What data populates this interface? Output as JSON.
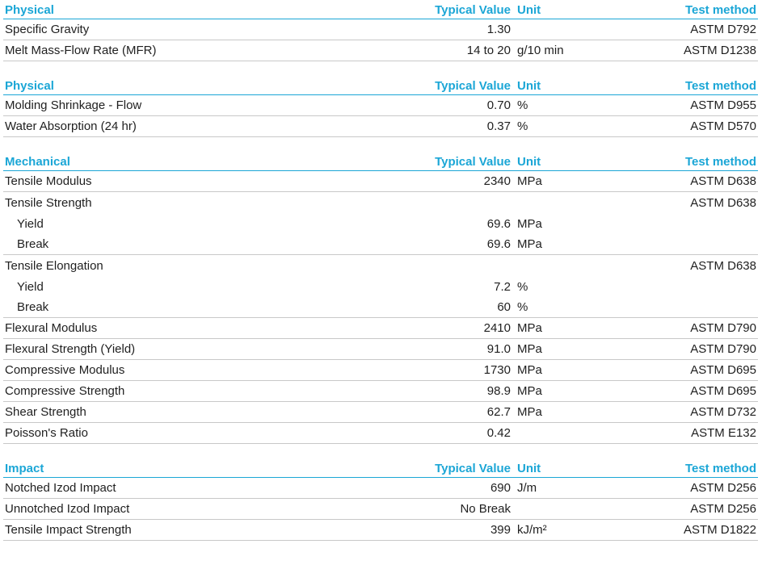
{
  "columns": {
    "typical_value": "Typical Value",
    "unit": "Unit",
    "test_method": "Test method"
  },
  "sections": [
    {
      "title": "Physical",
      "rows": [
        {
          "property": "Specific Gravity",
          "value": "1.30",
          "unit": "",
          "test": "ASTM D792"
        },
        {
          "property": "Melt Mass-Flow Rate (MFR)",
          "value": "14 to 20",
          "unit": "g/10 min",
          "test": "ASTM D1238"
        }
      ]
    },
    {
      "title": "Physical",
      "rows": [
        {
          "property": "Molding Shrinkage - Flow",
          "value": "0.70",
          "unit": "%",
          "test": "ASTM D955"
        },
        {
          "property": "Water Absorption (24 hr)",
          "value": "0.37",
          "unit": "%",
          "test": "ASTM D570"
        }
      ]
    },
    {
      "title": "Mechanical",
      "rows": [
        {
          "property": "Tensile Modulus",
          "value": "2340",
          "unit": "MPa",
          "test": "ASTM D638"
        },
        {
          "property": "Tensile Strength",
          "value": "",
          "unit": "",
          "test": "ASTM D638"
        },
        {
          "property": "Yield",
          "value": "69.6",
          "unit": "MPa",
          "test": ""
        },
        {
          "property": "Break",
          "value": "69.6",
          "unit": "MPa",
          "test": ""
        },
        {
          "property": "Tensile Elongation",
          "value": "",
          "unit": "",
          "test": "ASTM D638"
        },
        {
          "property": "Yield",
          "value": "7.2",
          "unit": "%",
          "test": ""
        },
        {
          "property": "Break",
          "value": "60",
          "unit": "%",
          "test": ""
        },
        {
          "property": "Flexural Modulus",
          "value": "2410",
          "unit": "MPa",
          "test": "ASTM D790"
        },
        {
          "property": "Flexural Strength (Yield)",
          "value": "91.0",
          "unit": "MPa",
          "test": "ASTM D790"
        },
        {
          "property": "Compressive Modulus",
          "value": "1730",
          "unit": "MPa",
          "test": "ASTM D695"
        },
        {
          "property": "Compressive Strength",
          "value": "98.9",
          "unit": "MPa",
          "test": "ASTM D695"
        },
        {
          "property": "Shear Strength",
          "value": "62.7",
          "unit": "MPa",
          "test": "ASTM D732"
        },
        {
          "property": "Poisson's Ratio",
          "value": "0.42",
          "unit": "",
          "test": "ASTM E132"
        }
      ]
    },
    {
      "title": "Impact",
      "rows": [
        {
          "property": "Notched Izod Impact",
          "value": "690",
          "unit": "J/m",
          "test": "ASTM D256"
        },
        {
          "property": "Unnotched Izod Impact",
          "value": "No Break",
          "unit": "",
          "test": "ASTM D256"
        },
        {
          "property": "Tensile Impact Strength",
          "value": "399",
          "unit": "kJ/m²",
          "test": "ASTM D1822"
        }
      ]
    }
  ]
}
